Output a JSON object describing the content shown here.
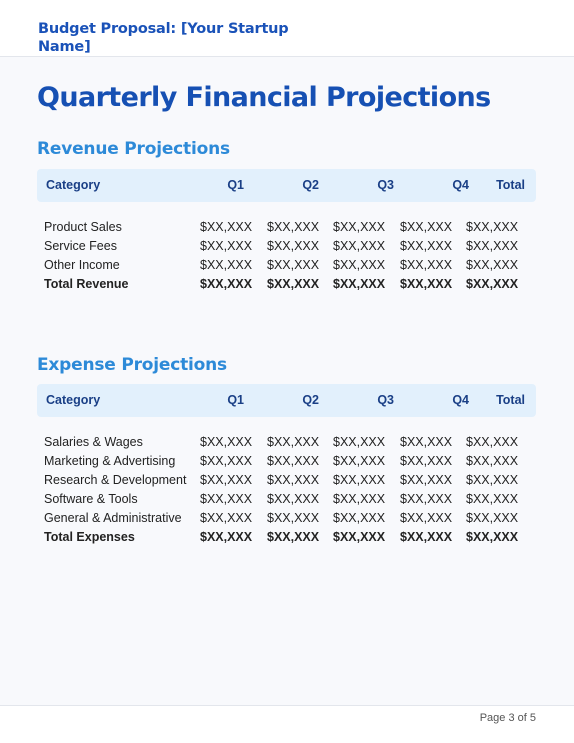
{
  "header": {
    "title": "Budget Proposal: [Your Startup Name]"
  },
  "page_title": "Quarterly Financial Projections",
  "columns": {
    "category": "Category",
    "q1": "Q1",
    "q2": "Q2",
    "q3": "Q3",
    "q4": "Q4",
    "total": "Total"
  },
  "revenue": {
    "title": "Revenue Projections",
    "rows": [
      {
        "category": "Product Sales",
        "q1": "$XX,XXX",
        "q2": "$XX,XXX",
        "q3": "$XX,XXX",
        "q4": "$XX,XXX",
        "total": "$XX,XXX"
      },
      {
        "category": "Service Fees",
        "q1": "$XX,XXX",
        "q2": "$XX,XXX",
        "q3": "$XX,XXX",
        "q4": "$XX,XXX",
        "total": "$XX,XXX"
      },
      {
        "category": "Other Income",
        "q1": "$XX,XXX",
        "q2": "$XX,XXX",
        "q3": "$XX,XXX",
        "q4": "$XX,XXX",
        "total": "$XX,XXX"
      },
      {
        "category": "Total Revenue",
        "q1": "$XX,XXX",
        "q2": "$XX,XXX",
        "q3": "$XX,XXX",
        "q4": "$XX,XXX",
        "total": "$XX,XXX"
      }
    ]
  },
  "expenses": {
    "title": "Expense Projections",
    "rows": [
      {
        "category": "Salaries & Wages",
        "q1": "$XX,XXX",
        "q2": "$XX,XXX",
        "q3": "$XX,XXX",
        "q4": "$XX,XXX",
        "total": "$XX,XXX"
      },
      {
        "category": "Marketing & Advertising",
        "q1": "$XX,XXX",
        "q2": "$XX,XXX",
        "q3": "$XX,XXX",
        "q4": "$XX,XXX",
        "total": "$XX,XXX"
      },
      {
        "category": "Research & Development",
        "q1": "$XX,XXX",
        "q2": "$XX,XXX",
        "q3": "$XX,XXX",
        "q4": "$XX,XXX",
        "total": "$XX,XXX"
      },
      {
        "category": "Software & Tools",
        "q1": "$XX,XXX",
        "q2": "$XX,XXX",
        "q3": "$XX,XXX",
        "q4": "$XX,XXX",
        "total": "$XX,XXX"
      },
      {
        "category": "General & Administrative",
        "q1": "$XX,XXX",
        "q2": "$XX,XXX",
        "q3": "$XX,XXX",
        "q4": "$XX,XXX",
        "total": "$XX,XXX"
      },
      {
        "category": "Total Expenses",
        "q1": "$XX,XXX",
        "q2": "$XX,XXX",
        "q3": "$XX,XXX",
        "q4": "$XX,XXX",
        "total": "$XX,XXX"
      }
    ]
  },
  "footer": {
    "page_label": "Page 3 of 5"
  },
  "colors": {
    "heading": "#1650b3",
    "section": "#2d8ad8",
    "table_header_bg": "#e2f0fc"
  }
}
